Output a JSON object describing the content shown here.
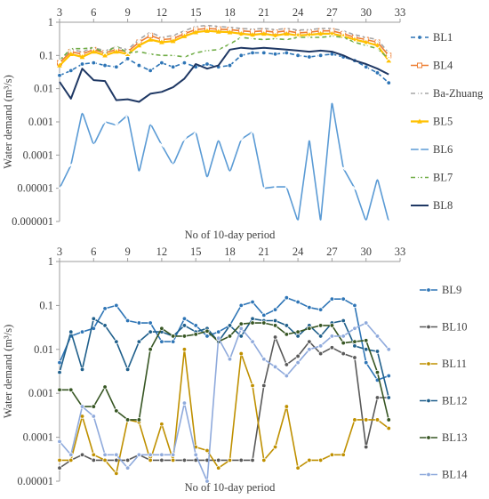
{
  "chart_data": [
    {
      "type": "line",
      "xlabel": "No of 10-day period",
      "ylabel": "Water demand (m³/s)",
      "y_scale": "log",
      "ylim": [
        1e-06,
        1
      ],
      "xlim": [
        3,
        33
      ],
      "x_ticks": [
        3,
        6,
        9,
        12,
        15,
        18,
        21,
        24,
        27,
        30,
        33
      ],
      "y_ticks": [
        1,
        0.1,
        0.01,
        0.001,
        0.0001,
        1e-05,
        1e-06
      ],
      "y_tick_labels": [
        "1",
        "0.1",
        "0.01",
        "0.001",
        "0.0001",
        "0.00001",
        "0.000001"
      ],
      "grid": false,
      "legend_position": "right",
      "x": [
        3,
        4,
        5,
        6,
        7,
        8,
        9,
        10,
        11,
        12,
        13,
        14,
        15,
        16,
        17,
        18,
        19,
        20,
        21,
        22,
        23,
        24,
        25,
        26,
        27,
        28,
        29,
        30,
        31,
        32
      ],
      "series": [
        {
          "name": "BL1",
          "color": "#2e75b6",
          "style": "dashed",
          "marker": "circle",
          "values": [
            0.025,
            0.035,
            0.055,
            0.06,
            0.05,
            0.045,
            0.08,
            0.05,
            0.035,
            0.06,
            0.045,
            0.06,
            0.045,
            0.055,
            0.045,
            0.05,
            0.1,
            0.12,
            0.12,
            0.11,
            0.12,
            0.1,
            0.09,
            0.1,
            0.11,
            0.09,
            0.07,
            0.045,
            0.03,
            0.015
          ]
        },
        {
          "name": "BL4",
          "color": "#ed7d31",
          "style": "solid",
          "marker": "square",
          "values": [
            0.06,
            0.13,
            0.11,
            0.15,
            0.12,
            0.15,
            0.13,
            0.25,
            0.4,
            0.3,
            0.32,
            0.45,
            0.6,
            0.65,
            0.62,
            0.6,
            0.55,
            0.52,
            0.55,
            0.5,
            0.55,
            0.48,
            0.5,
            0.55,
            0.55,
            0.45,
            0.35,
            0.3,
            0.25,
            0.1
          ]
        },
        {
          "name": "Ba-Zhuang",
          "color": "#a5a5a5",
          "style": "dashed",
          "marker": "cross",
          "values": [
            0.07,
            0.15,
            0.13,
            0.17,
            0.14,
            0.18,
            0.15,
            0.3,
            0.5,
            0.35,
            0.4,
            0.55,
            0.75,
            0.8,
            0.75,
            0.7,
            0.65,
            0.62,
            0.65,
            0.6,
            0.65,
            0.58,
            0.6,
            0.65,
            0.65,
            0.55,
            0.42,
            0.35,
            0.3,
            0.12
          ]
        },
        {
          "name": "BL5",
          "color": "#ffc000",
          "style": "solid",
          "marker": "triangle",
          "values": [
            0.05,
            0.11,
            0.09,
            0.13,
            0.1,
            0.13,
            0.11,
            0.2,
            0.3,
            0.25,
            0.27,
            0.38,
            0.5,
            0.55,
            0.52,
            0.5,
            0.45,
            0.42,
            0.45,
            0.4,
            0.45,
            0.4,
            0.42,
            0.45,
            0.45,
            0.38,
            0.3,
            0.25,
            0.2,
            0.07
          ]
        },
        {
          "name": "BL6",
          "color": "#5b9bd5",
          "style": "solid",
          "marker": "cross",
          "values": [
            1e-05,
            5e-05,
            0.002,
            0.0002,
            0.001,
            0.0008,
            0.0016,
            3e-05,
            0.0009,
            0.0002,
            5e-05,
            0.0003,
            0.0005,
            2e-05,
            0.0003,
            3e-05,
            0.0003,
            0.0005,
            1e-05,
            1.1e-05,
            1.1e-05,
            1e-06,
            0.0003,
            1e-06,
            0.004,
            4e-05,
            1e-05,
            1e-06,
            2e-05,
            1e-06
          ]
        },
        {
          "name": "BL7",
          "color": "#70ad47",
          "style": "dashed",
          "marker": "cross",
          "values": [
            0.07,
            0.16,
            0.16,
            0.17,
            0.12,
            0.19,
            0.12,
            0.13,
            0.11,
            0.1,
            0.1,
            0.09,
            0.12,
            0.14,
            0.15,
            0.22,
            0.35,
            0.32,
            0.3,
            0.32,
            0.3,
            0.35,
            0.35,
            0.35,
            0.38,
            0.35,
            0.25,
            0.2,
            0.16,
            0.08
          ]
        },
        {
          "name": "BL8",
          "color": "#1f3864",
          "style": "solid",
          "marker": "none",
          "values": [
            0.016,
            0.005,
            0.04,
            0.018,
            0.017,
            0.0045,
            0.0048,
            0.004,
            0.007,
            0.008,
            0.011,
            0.02,
            0.055,
            0.04,
            0.05,
            0.15,
            0.17,
            0.16,
            0.17,
            0.16,
            0.15,
            0.14,
            0.13,
            0.14,
            0.13,
            0.1,
            0.07,
            0.055,
            0.04,
            0.027
          ]
        }
      ]
    },
    {
      "type": "line",
      "xlabel": "No of 10-day period",
      "ylabel": "Water demand (m³/s)",
      "y_scale": "log",
      "ylim": [
        1e-05,
        1
      ],
      "xlim": [
        3,
        33
      ],
      "x_ticks": [
        3,
        6,
        9,
        12,
        15,
        18,
        21,
        24,
        27,
        30,
        33
      ],
      "y_ticks": [
        1,
        0.1,
        0.01,
        0.001,
        0.0001,
        1e-05
      ],
      "y_tick_labels": [
        "1",
        "0.1",
        "0.01",
        "0.001",
        "0.0001",
        "0.00001"
      ],
      "grid": false,
      "legend_position": "right",
      "x": [
        3,
        4,
        5,
        6,
        7,
        8,
        9,
        10,
        11,
        12,
        13,
        14,
        15,
        16,
        17,
        18,
        19,
        20,
        21,
        22,
        23,
        24,
        25,
        26,
        27,
        28,
        29,
        30,
        31,
        32
      ],
      "series": [
        {
          "name": "BL9",
          "color": "#2e75b6",
          "style": "solid",
          "marker": "circle",
          "values": [
            0.005,
            0.02,
            0.025,
            0.03,
            0.085,
            0.1,
            0.045,
            0.04,
            0.04,
            0.015,
            0.015,
            0.05,
            0.035,
            0.02,
            0.025,
            0.035,
            0.1,
            0.12,
            0.06,
            0.08,
            0.15,
            0.12,
            0.09,
            0.08,
            0.14,
            0.14,
            0.1,
            0.005,
            0.002,
            0.0025
          ]
        },
        {
          "name": "BL10",
          "color": "#595959",
          "style": "solid",
          "marker": "circle",
          "values": [
            2e-05,
            3e-05,
            4e-05,
            3e-05,
            3e-05,
            3e-05,
            3e-05,
            4e-05,
            3e-05,
            3e-05,
            3e-05,
            3e-05,
            3e-05,
            3e-05,
            3e-05,
            3e-05,
            3e-05,
            3e-05,
            0.0015,
            0.019,
            0.0045,
            0.007,
            0.015,
            0.008,
            0.011,
            0.008,
            0.0065,
            6e-05,
            0.0008,
            0.0008
          ]
        },
        {
          "name": "BL11",
          "color": "#bf9000",
          "style": "solid",
          "marker": "circle",
          "values": [
            3e-05,
            3e-05,
            0.0003,
            4e-05,
            3e-05,
            1.5e-05,
            0.00025,
            0.00022,
            3e-05,
            0.0002,
            3e-05,
            0.01,
            6e-05,
            5e-05,
            2e-05,
            3e-05,
            0.008,
            0.0015,
            3e-05,
            6e-05,
            0.0005,
            2e-05,
            3e-05,
            3e-05,
            4e-05,
            4e-05,
            0.00025,
            0.00025,
            0.00025,
            0.00016
          ]
        },
        {
          "name": "BL12",
          "color": "#1f5f8b",
          "style": "solid",
          "marker": "circle",
          "values": [
            0.003,
            0.025,
            0.0035,
            0.05,
            0.035,
            0.015,
            0.0035,
            0.015,
            0.025,
            0.025,
            0.02,
            0.035,
            0.025,
            0.03,
            0.015,
            0.035,
            0.02,
            0.05,
            0.045,
            0.045,
            0.035,
            0.02,
            0.035,
            0.02,
            0.04,
            0.045,
            0.012,
            0.01,
            0.009,
            0.0008
          ]
        },
        {
          "name": "BL13",
          "color": "#375623",
          "style": "solid",
          "marker": "circle",
          "values": [
            0.0012,
            0.0012,
            0.0005,
            0.0005,
            0.0014,
            0.0004,
            0.00025,
            0.00025,
            0.01,
            0.03,
            0.02,
            0.02,
            0.022,
            0.026,
            0.015,
            0.02,
            0.038,
            0.04,
            0.04,
            0.035,
            0.022,
            0.025,
            0.03,
            0.035,
            0.035,
            0.014,
            0.015,
            0.016,
            0.003,
            0.00025
          ]
        },
        {
          "name": "BL14",
          "color": "#8faadc",
          "style": "solid",
          "marker": "circle",
          "values": [
            8e-05,
            4e-05,
            0.0005,
            0.0003,
            4e-05,
            4e-05,
            2e-05,
            4e-05,
            4e-05,
            4e-05,
            4e-05,
            0.0006,
            4e-05,
            1e-05,
            0.018,
            0.006,
            0.03,
            0.015,
            0.006,
            0.004,
            0.0025,
            0.005,
            0.01,
            0.012,
            0.02,
            0.02,
            0.03,
            0.04,
            0.02,
            0.01
          ]
        }
      ]
    }
  ]
}
